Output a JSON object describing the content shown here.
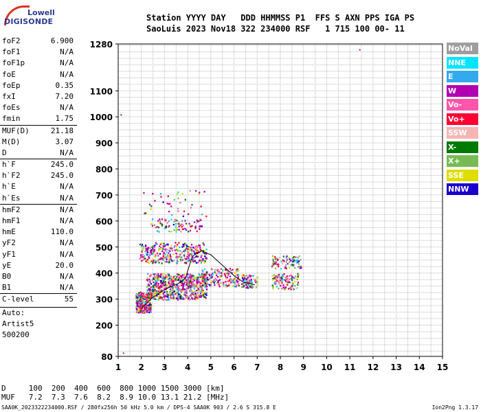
{
  "logo": {
    "top": "Lowell",
    "bottom": "DIGISONDE"
  },
  "header": {
    "line1": "Station YYYY DAY   DDD HHMMSS P1  FFS S AXN PPS IGA PS",
    "line2": "SaoLuis 2023 Nov18 322 234000 RSF   1 715 100 00- 11"
  },
  "params": [
    {
      "name": "foF2",
      "value": "6.900"
    },
    {
      "name": "foF1",
      "value": "N/A"
    },
    {
      "name": "foF1p",
      "value": "N/A"
    },
    {
      "name": "foE",
      "value": "N/A"
    },
    {
      "name": "foEp",
      "value": "0.35"
    },
    {
      "name": "fxI",
      "value": "7.20"
    },
    {
      "name": "foEs",
      "value": "N/A"
    },
    {
      "name": "fmin",
      "value": "1.75"
    },
    {
      "name": "MUF(D)",
      "value": "21.18"
    },
    {
      "name": "M(D)",
      "value": "3.07"
    },
    {
      "name": "D",
      "value": "N/A"
    },
    {
      "name": "h`F",
      "value": "245.0"
    },
    {
      "name": "h`F2",
      "value": "245.0"
    },
    {
      "name": "h`E",
      "value": "N/A"
    },
    {
      "name": "h`Es",
      "value": "N/A"
    },
    {
      "name": "hmF2",
      "value": "N/A"
    },
    {
      "name": "hmF1",
      "value": "N/A"
    },
    {
      "name": "hmE",
      "value": "110.0"
    },
    {
      "name": "yF2",
      "value": "N/A"
    },
    {
      "name": "yF1",
      "value": "N/A"
    },
    {
      "name": "yE",
      "value": "20.0"
    },
    {
      "name": "B0",
      "value": "N/A"
    },
    {
      "name": "B1",
      "value": "N/A"
    },
    {
      "name": "C-level",
      "value": "55"
    }
  ],
  "auto": {
    "line1": "Auto:",
    "line2": "Artist5",
    "line3": "500200"
  },
  "legend": [
    {
      "label": "NoVal",
      "color": "#9e9e9e"
    },
    {
      "label": "NNE",
      "color": "#00e5ff"
    },
    {
      "label": "E",
      "color": "#33aaee"
    },
    {
      "label": "W",
      "color": "#b000b0"
    },
    {
      "label": "Vo-",
      "color": "#ff55aa"
    },
    {
      "label": "Vo+",
      "color": "#ff0033"
    },
    {
      "label": "SSW",
      "color": "#f5b5b5"
    },
    {
      "label": "X-",
      "color": "#007a00"
    },
    {
      "label": "X+",
      "color": "#77bb55"
    },
    {
      "label": "SSE",
      "color": "#dddd00"
    },
    {
      "label": "NNW",
      "color": "#1a00cc"
    }
  ],
  "bottom": {
    "row1": "D     100  200  400  600  800 1000 1500 3000 [km]",
    "row2": "MUF   7.2  7.3  7.6  8.2  8.9 10.0 13.1 21.2 [MHz]"
  },
  "footer": {
    "left": "SAA0K_2023322234000.RSF / 280fx256h 50 kHz 5.0 km / DPS-4 SAA0K 903 / 2.6 S 315.8 E",
    "right": "Ion2Png 1.3.17"
  },
  "chart_data": {
    "type": "scatter",
    "x_ticks": [
      1,
      2,
      3,
      4,
      5,
      6,
      7,
      8,
      9,
      10,
      11,
      12,
      13,
      14,
      15
    ],
    "y_ticks": [
      80,
      200,
      300,
      400,
      500,
      600,
      700,
      800,
      900,
      1000,
      1100,
      1280
    ],
    "xlim": [
      1,
      15
    ],
    "ylim": [
      80,
      1280
    ],
    "grid": true,
    "trace_frequency_mhz": [
      2.0,
      2.4,
      2.8,
      3.2,
      3.6,
      3.9,
      4.2,
      4.6,
      5.0,
      5.5,
      6.0,
      6.4,
      6.9
    ],
    "trace_virtual_height_km": [
      265,
      300,
      325,
      345,
      360,
      380,
      465,
      485,
      470,
      430,
      390,
      365,
      355
    ],
    "echo_clusters": [
      {
        "f_min": 1.75,
        "f_max": 2.4,
        "h_min": 250,
        "h_max": 330,
        "count": 260
      },
      {
        "f_min": 2.2,
        "f_max": 4.8,
        "h_min": 300,
        "h_max": 400,
        "count": 700
      },
      {
        "f_min": 1.9,
        "f_max": 4.8,
        "h_min": 440,
        "h_max": 520,
        "count": 350
      },
      {
        "f_min": 4.6,
        "f_max": 6.2,
        "h_min": 350,
        "h_max": 420,
        "count": 180
      },
      {
        "f_min": 6.3,
        "f_max": 7.0,
        "h_min": 345,
        "h_max": 395,
        "count": 90
      },
      {
        "f_min": 7.6,
        "f_max": 8.8,
        "h_min": 340,
        "h_max": 400,
        "count": 110
      },
      {
        "f_min": 7.6,
        "f_max": 8.9,
        "h_min": 420,
        "h_max": 470,
        "count": 90
      },
      {
        "f_min": 2.4,
        "f_max": 4.6,
        "h_min": 560,
        "h_max": 610,
        "count": 90
      },
      {
        "f_min": 2.0,
        "f_max": 4.8,
        "h_min": 620,
        "h_max": 720,
        "count": 40
      }
    ],
    "isolated_echoes": [
      {
        "f": 11.4,
        "h": 1260
      },
      {
        "f": 1.1,
        "h": 1010
      },
      {
        "f": 1.2,
        "h": 95
      }
    ]
  }
}
